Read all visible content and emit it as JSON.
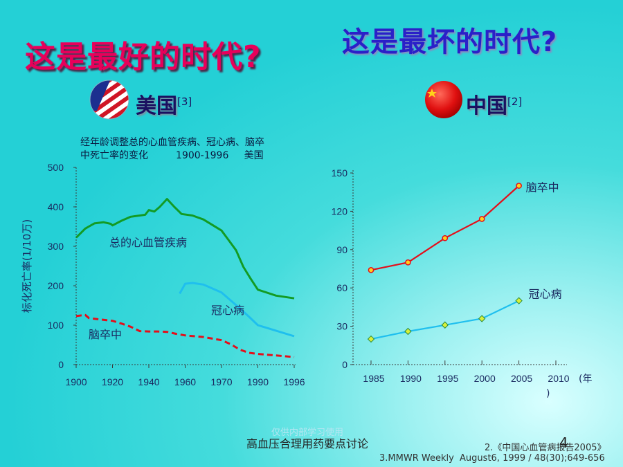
{
  "titles": {
    "best": "这是最好的时代?",
    "worst": "这是最坏的时代?"
  },
  "usa": {
    "label": "美国",
    "ref": "[3]",
    "caption_line1": "经年龄调整总的心血管疾病、冠心病、脑卒",
    "caption_line2": "中死亡率的变化         1900-1996     美国"
  },
  "china": {
    "label": "中国",
    "ref": "[2]"
  },
  "footer": {
    "topic": "高血压合理用药要点讨论",
    "page": "4",
    "watermark": "仅供内部学习使用",
    "ref2": "2.《中国心血管病报告2005》",
    "ref3": "3.MMWR Weekly  August6, 1999 / 48(30);649-656"
  },
  "colors": {
    "total_cvd": "#139b24",
    "chd": "#1fbfee",
    "stroke": "#e40e1a",
    "china_stroke_marker": "#ffd21a",
    "china_chd_marker": "#d8f03a"
  },
  "chart_data": [
    {
      "type": "line",
      "ylabel": "标化死亡率(1/10万)",
      "xlabel": "",
      "xlim": [
        1900,
        1996
      ],
      "ylim": [
        0,
        500
      ],
      "xticks": [
        "1900",
        "1920",
        "1940",
        "1960",
        "1970",
        "1990",
        "1996"
      ],
      "yticks": [
        "0",
        "100",
        "200",
        "300",
        "400",
        "500"
      ],
      "grid": false,
      "series": [
        {
          "name": "总的心血管疾病",
          "style": "solid",
          "points": [
            [
              1900,
              322
            ],
            [
              1905,
              345
            ],
            [
              1910,
              358
            ],
            [
              1915,
              361
            ],
            [
              1919,
              357
            ],
            [
              1920,
              353
            ],
            [
              1925,
              365
            ],
            [
              1930,
              375
            ],
            [
              1935,
              378
            ],
            [
              1938,
              380
            ],
            [
              1940,
              392
            ],
            [
              1943,
              388
            ],
            [
              1946,
              400
            ],
            [
              1950,
              420
            ],
            [
              1954,
              400
            ],
            [
              1958,
              382
            ],
            [
              1962,
              378
            ],
            [
              1965,
              368
            ],
            [
              1970,
              340
            ],
            [
              1974,
              315
            ],
            [
              1978,
              290
            ],
            [
              1982,
              248
            ],
            [
              1986,
              218
            ],
            [
              1990,
              190
            ],
            [
              1993,
              175
            ],
            [
              1996,
              168
            ]
          ]
        },
        {
          "name": "冠心病",
          "style": "solid",
          "points": [
            [
              1957,
              180
            ],
            [
              1960,
              205
            ],
            [
              1962,
              207
            ],
            [
              1965,
              203
            ],
            [
              1970,
              183
            ],
            [
              1975,
              163
            ],
            [
              1980,
              143
            ],
            [
              1985,
              122
            ],
            [
              1990,
              100
            ],
            [
              1996,
              72
            ]
          ]
        },
        {
          "name": "脑卒中",
          "style": "dashed",
          "points": [
            [
              1900,
              123
            ],
            [
              1903,
              125
            ],
            [
              1905,
              126
            ],
            [
              1907,
              118
            ],
            [
              1912,
              115
            ],
            [
              1920,
              111
            ],
            [
              1925,
              104
            ],
            [
              1930,
              96
            ],
            [
              1935,
              85
            ],
            [
              1940,
              84
            ],
            [
              1945,
              84
            ],
            [
              1950,
              83
            ],
            [
              1955,
              78
            ],
            [
              1960,
              74
            ],
            [
              1965,
              70
            ],
            [
              1970,
              62
            ],
            [
              1975,
              52
            ],
            [
              1980,
              38
            ],
            [
              1985,
              30
            ],
            [
              1990,
              27
            ],
            [
              1994,
              22
            ],
            [
              1996,
              19
            ]
          ]
        }
      ]
    },
    {
      "type": "line",
      "xlabel": "(年)",
      "x": [
        1985,
        1990,
        1995,
        2000,
        2005,
        2010
      ],
      "xticks": [
        "1985",
        "1990",
        "1995",
        "2000",
        "2005",
        "2010"
      ],
      "ylim": [
        0,
        150
      ],
      "yticks": [
        "0",
        "30",
        "60",
        "90",
        "120",
        "150"
      ],
      "grid": false,
      "series": [
        {
          "name": "脑卒中",
          "x": [
            1985,
            1990,
            1995,
            2000,
            2005
          ],
          "values": [
            74,
            80,
            99,
            114,
            140
          ]
        },
        {
          "name": "冠心病",
          "x": [
            1985,
            1990,
            1995,
            2000,
            2005
          ],
          "values": [
            20,
            26,
            31,
            36,
            50
          ]
        }
      ]
    }
  ]
}
